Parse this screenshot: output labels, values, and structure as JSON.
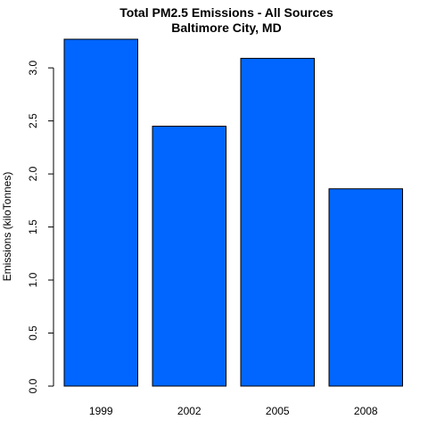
{
  "chart_data": {
    "type": "bar",
    "title": "Total PM2.5 Emissions - All Sources",
    "subtitle": "Baltimore City, MD",
    "xlabel": "",
    "ylabel": "Emissions (kiloTonnes)",
    "categories": [
      "1999",
      "2002",
      "2005",
      "2008"
    ],
    "values": [
      3.27,
      2.45,
      3.09,
      1.86
    ],
    "ylim": [
      0,
      3.27
    ],
    "yticks": [
      0.0,
      0.5,
      1.0,
      1.5,
      2.0,
      2.5,
      3.0
    ],
    "ytick_labels": [
      "0.0",
      "0.5",
      "1.0",
      "1.5",
      "2.0",
      "2.5",
      "3.0"
    ],
    "bar_color": "#0066ff",
    "grid": false,
    "legend": "none"
  }
}
